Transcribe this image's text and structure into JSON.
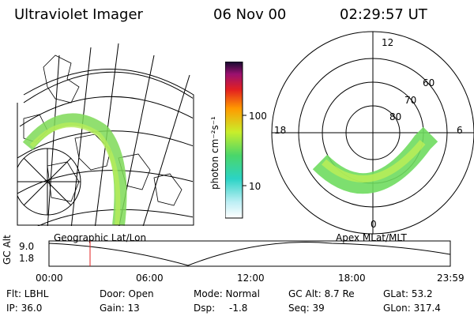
{
  "header": {
    "title": "Ultraviolet Imager",
    "date": "06 Nov 00",
    "time": "02:29:57 UT"
  },
  "colorbar": {
    "unit_label": "photon cm⁻²s⁻¹",
    "ticks": [
      "100",
      "10"
    ]
  },
  "polar_plot": {
    "mlt_labels": {
      "top": "12",
      "left": "18",
      "right": "6",
      "bottom": "0"
    },
    "lat_labels": [
      "60",
      "70",
      "80"
    ]
  },
  "labels": {
    "geo": "Geographic Lat/Lon",
    "apex": "Apex MLat/MLT"
  },
  "timeline": {
    "ylabel": "GC Alt",
    "y_ticks": [
      "9.0",
      "1.8"
    ],
    "x_ticks": [
      "00:00",
      "06:00",
      "12:00",
      "18:00",
      "23:59"
    ],
    "marker_time": "02:30"
  },
  "footer": {
    "flt": "Flt: LBHL",
    "ip": "IP: 36.0",
    "door": "Door: Open",
    "gain": "Gain: 13",
    "mode": "Mode: Normal",
    "dsp": "Dsp:",
    "dsp_value": "-1.8",
    "gcalt": "GC Alt: 8.7 Re",
    "seq": "Seq: 39",
    "glat": "GLat:  53.2",
    "glon": "GLon: 317.4"
  }
}
